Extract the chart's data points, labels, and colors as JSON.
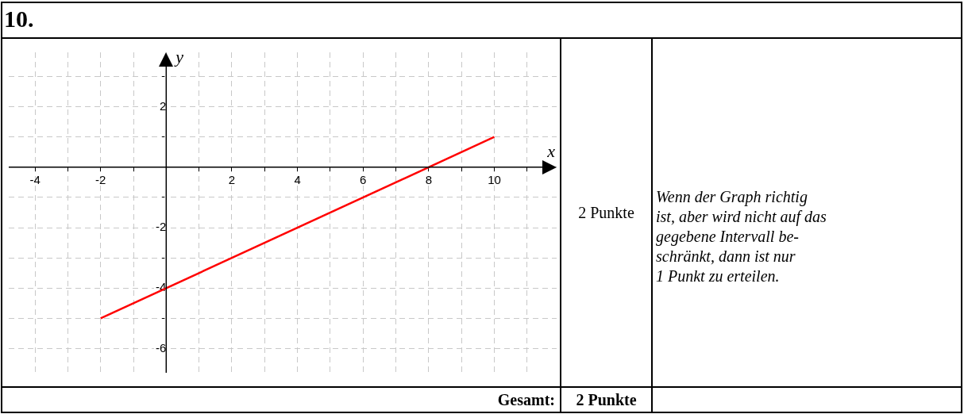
{
  "chart_data": {
    "type": "line",
    "title": "10.",
    "xlabel": "x",
    "ylabel": "y",
    "x": [
      -2,
      10
    ],
    "series": [
      {
        "color": "#ff0000",
        "values": [
          -5,
          1
        ]
      }
    ],
    "xlim": [
      -4.8,
      11.9
    ],
    "ylim": [
      -6.8,
      3.8
    ],
    "xticks": [
      -4,
      {
        "value": -3,
        "label": null
      },
      -2,
      {
        "value": -1,
        "label": null
      },
      {
        "value": 0,
        "label": null
      },
      {
        "value": 1,
        "label": null
      },
      2,
      {
        "value": 3,
        "label": null
      },
      4,
      {
        "value": 5,
        "label": null
      },
      6,
      {
        "value": 7,
        "label": null
      },
      8,
      {
        "value": 9,
        "label": null
      },
      10,
      {
        "value": 11,
        "label": null
      }
    ],
    "yticks": [
      -6,
      {
        "value": -5,
        "label": null
      },
      -4,
      {
        "value": -3,
        "label": null
      },
      -2,
      {
        "value": -1,
        "label": null
      },
      {
        "value": 0,
        "label": null
      },
      {
        "value": 1,
        "label": null
      },
      2,
      {
        "value": 3,
        "label": null
      }
    ],
    "grid": true,
    "legend": false,
    "marker": "none",
    "line_style": "solid",
    "annotations": [
      "2 Punkte",
      "Wenn der Graph richtig\nist, aber wird nicht auf das\ngegebene Intervall be-\nschränkt, dann ist nur\n1 Punkt zu erteilen.",
      "Gesamt:",
      "2 Punkte"
    ]
  }
}
